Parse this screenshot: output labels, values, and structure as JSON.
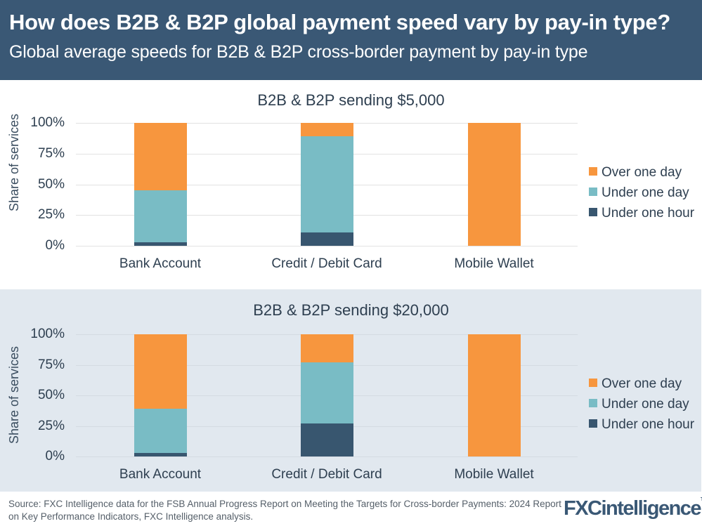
{
  "header": {
    "title": "How does B2B & B2P global payment speed vary by pay-in type?",
    "subtitle": "Global average speeds for B2B & B2P cross-border payment by pay-in type"
  },
  "colors": {
    "header_bg": "#3a5875",
    "over_one_day": "#f7963e",
    "under_one_day": "#79bcc5",
    "under_one_hour": "#38566f",
    "panel2_bg": "#e1e8ef"
  },
  "axis": {
    "ylabel": "Share of services",
    "ticks": [
      "100%",
      "75%",
      "50%",
      "25%",
      "0%"
    ]
  },
  "legend": {
    "items": [
      {
        "label": "Over one day",
        "color": "#f7963e"
      },
      {
        "label": "Under one day",
        "color": "#79bcc5"
      },
      {
        "label": "Under one hour",
        "color": "#38566f"
      }
    ]
  },
  "chart_data": [
    {
      "type": "bar",
      "stacked": true,
      "title": "B2B & B2P sending $5,000",
      "xlabel": "",
      "ylabel": "Share of services",
      "ylim": [
        0,
        100
      ],
      "yticks": [
        "0%",
        "25%",
        "50%",
        "75%",
        "100%"
      ],
      "grid": true,
      "legend_position": "right",
      "categories": [
        "Bank Account",
        "Credit / Debit Card",
        "Mobile Wallet"
      ],
      "series": [
        {
          "name": "Under one hour",
          "values": [
            3,
            11,
            0
          ]
        },
        {
          "name": "Under one day",
          "values": [
            42,
            78,
            0
          ]
        },
        {
          "name": "Over one day",
          "values": [
            55,
            11,
            100
          ]
        }
      ]
    },
    {
      "type": "bar",
      "stacked": true,
      "title": "B2B & B2P sending $20,000",
      "xlabel": "",
      "ylabel": "Share of services",
      "ylim": [
        0,
        100
      ],
      "yticks": [
        "0%",
        "25%",
        "50%",
        "75%",
        "100%"
      ],
      "grid": true,
      "legend_position": "right",
      "categories": [
        "Bank Account",
        "Credit / Debit Card",
        "Mobile Wallet"
      ],
      "series": [
        {
          "name": "Under one hour",
          "values": [
            3,
            27,
            0
          ]
        },
        {
          "name": "Under one day",
          "values": [
            36,
            50,
            0
          ]
        },
        {
          "name": "Over one day",
          "values": [
            61,
            23,
            100
          ]
        }
      ]
    }
  ],
  "footer": {
    "source": "Source: FXC Intelligence data for the FSB Annual Progress Report on Meeting the Targets for Cross-border Payments: 2024 Report on Key Performance Indicators, FXC Intelligence analysis.",
    "logo_fxc": "FXC",
    "logo_rest": "intelligence",
    "logo_tm": "TM"
  }
}
